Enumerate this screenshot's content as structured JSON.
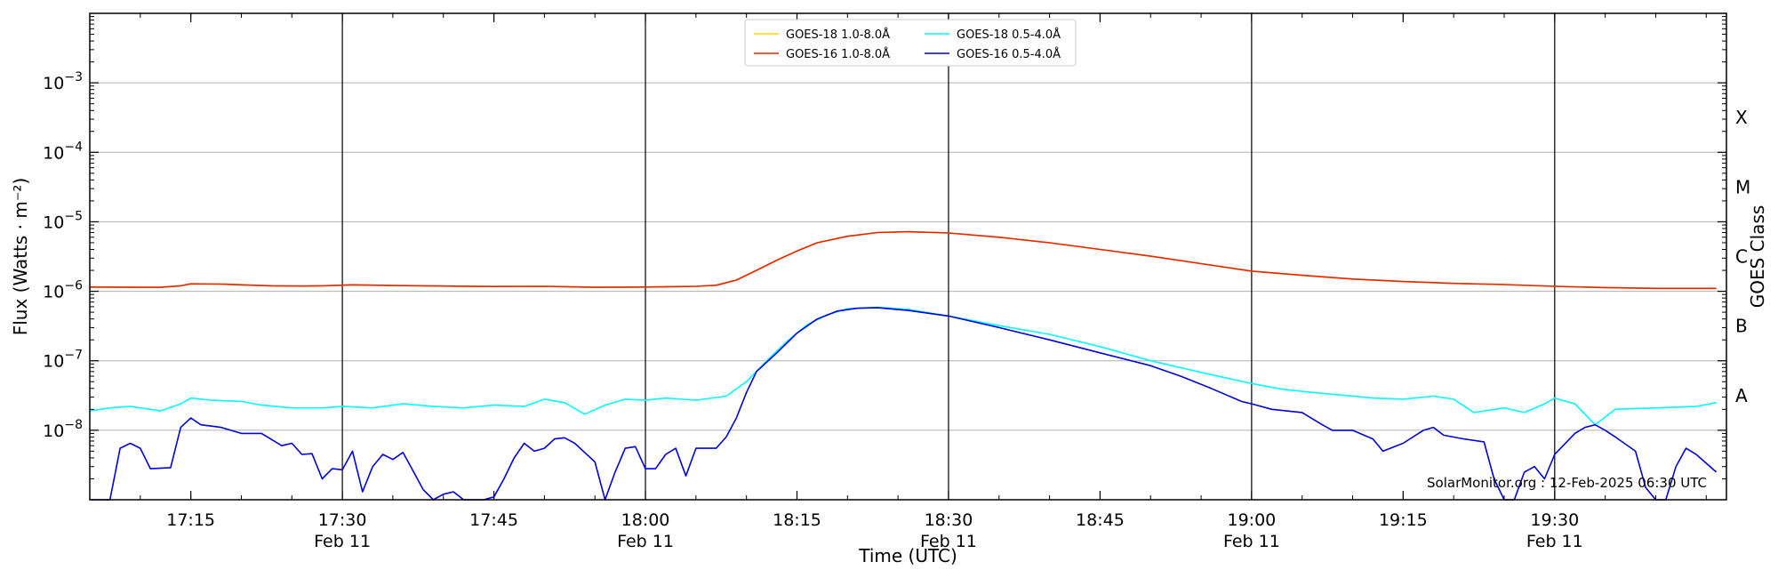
{
  "chart_data": {
    "type": "line",
    "title": "",
    "xlabel": "Time (UTC)",
    "ylabel": "Flux (Watts · m⁻²)",
    "ylabel_right": "GOES Class",
    "yscale": "log",
    "xlim": [
      "17:05",
      "19:47"
    ],
    "ylim": [
      1e-09,
      0.01
    ],
    "grid": "horizontal-decades",
    "legend_position": "top-center",
    "credit": "SolarMonitor.org : 12-Feb-2025 06:30 UTC",
    "x_ticks": [
      {
        "time": "17:15",
        "label": "17:15",
        "date": ""
      },
      {
        "time": "17:30",
        "label": "17:30",
        "date": "Feb 11",
        "major": true
      },
      {
        "time": "17:45",
        "label": "17:45",
        "date": ""
      },
      {
        "time": "18:00",
        "label": "18:00",
        "date": "Feb 11",
        "major": true
      },
      {
        "time": "18:15",
        "label": "18:15",
        "date": ""
      },
      {
        "time": "18:30",
        "label": "18:30",
        "date": "Feb 11",
        "major": true
      },
      {
        "time": "18:45",
        "label": "18:45",
        "date": ""
      },
      {
        "time": "19:00",
        "label": "19:00",
        "date": "Feb 11",
        "major": true
      },
      {
        "time": "19:15",
        "label": "19:15",
        "date": ""
      },
      {
        "time": "19:30",
        "label": "19:30",
        "date": "Feb 11",
        "major": true
      }
    ],
    "y_ticks": [
      {
        "value": 1e-08,
        "base": "10",
        "exp": "−8"
      },
      {
        "value": 1e-07,
        "base": "10",
        "exp": "−7"
      },
      {
        "value": 1e-06,
        "base": "10",
        "exp": "−6"
      },
      {
        "value": 1e-05,
        "base": "10",
        "exp": "−5"
      },
      {
        "value": 0.0001,
        "base": "10",
        "exp": "−4"
      },
      {
        "value": 0.001,
        "base": "10",
        "exp": "−3"
      }
    ],
    "goes_classes": [
      {
        "label": "A",
        "value": 3.16e-08
      },
      {
        "label": "B",
        "value": 3.16e-07
      },
      {
        "label": "C",
        "value": 3.16e-06
      },
      {
        "label": "M",
        "value": 3.16e-05
      },
      {
        "label": "X",
        "value": 0.000316
      }
    ],
    "series": [
      {
        "name": "GOES-18 1.0-8.0Å",
        "color": "#ffd700",
        "points": [
          [
            "17:05",
            1.15e-06
          ],
          [
            "17:10",
            1.14e-06
          ],
          [
            "17:12",
            1.14e-06
          ],
          [
            "17:14",
            1.2e-06
          ],
          [
            "17:15",
            1.28e-06
          ],
          [
            "17:18",
            1.27e-06
          ],
          [
            "17:20",
            1.24e-06
          ],
          [
            "17:23",
            1.2e-06
          ],
          [
            "17:26",
            1.19e-06
          ],
          [
            "17:28",
            1.2e-06
          ],
          [
            "17:31",
            1.24e-06
          ],
          [
            "17:35",
            1.21e-06
          ],
          [
            "17:40",
            1.19e-06
          ],
          [
            "17:45",
            1.17e-06
          ],
          [
            "17:50",
            1.18e-06
          ],
          [
            "17:55",
            1.14e-06
          ],
          [
            "18:00",
            1.15e-06
          ],
          [
            "18:05",
            1.18e-06
          ],
          [
            "18:07",
            1.22e-06
          ],
          [
            "18:09",
            1.45e-06
          ],
          [
            "18:11",
            2e-06
          ],
          [
            "18:13",
            2.8e-06
          ],
          [
            "18:15",
            3.8e-06
          ],
          [
            "18:17",
            5e-06
          ],
          [
            "18:20",
            6.2e-06
          ],
          [
            "18:23",
            7e-06
          ],
          [
            "18:26",
            7.2e-06
          ],
          [
            "18:30",
            6.9e-06
          ],
          [
            "18:35",
            6e-06
          ],
          [
            "18:40",
            5e-06
          ],
          [
            "18:45",
            4e-06
          ],
          [
            "18:50",
            3.2e-06
          ],
          [
            "18:55",
            2.5e-06
          ],
          [
            "19:00",
            1.95e-06
          ],
          [
            "19:05",
            1.7e-06
          ],
          [
            "19:10",
            1.5e-06
          ],
          [
            "19:15",
            1.38e-06
          ],
          [
            "19:20",
            1.3e-06
          ],
          [
            "19:25",
            1.25e-06
          ],
          [
            "19:30",
            1.18e-06
          ],
          [
            "19:35",
            1.13e-06
          ],
          [
            "19:40",
            1.1e-06
          ],
          [
            "19:46",
            1.1e-06
          ]
        ]
      },
      {
        "name": "GOES-16 1.0-8.0Å",
        "color": "#ee2200",
        "points": [
          [
            "17:05",
            1.15e-06
          ],
          [
            "17:10",
            1.14e-06
          ],
          [
            "17:12",
            1.14e-06
          ],
          [
            "17:14",
            1.2e-06
          ],
          [
            "17:15",
            1.28e-06
          ],
          [
            "17:18",
            1.27e-06
          ],
          [
            "17:20",
            1.24e-06
          ],
          [
            "17:23",
            1.2e-06
          ],
          [
            "17:26",
            1.19e-06
          ],
          [
            "17:28",
            1.2e-06
          ],
          [
            "17:31",
            1.24e-06
          ],
          [
            "17:35",
            1.21e-06
          ],
          [
            "17:40",
            1.19e-06
          ],
          [
            "17:45",
            1.17e-06
          ],
          [
            "17:50",
            1.18e-06
          ],
          [
            "17:55",
            1.14e-06
          ],
          [
            "18:00",
            1.15e-06
          ],
          [
            "18:05",
            1.18e-06
          ],
          [
            "18:07",
            1.22e-06
          ],
          [
            "18:09",
            1.45e-06
          ],
          [
            "18:11",
            2e-06
          ],
          [
            "18:13",
            2.8e-06
          ],
          [
            "18:15",
            3.8e-06
          ],
          [
            "18:17",
            5e-06
          ],
          [
            "18:20",
            6.2e-06
          ],
          [
            "18:23",
            7e-06
          ],
          [
            "18:26",
            7.2e-06
          ],
          [
            "18:30",
            6.9e-06
          ],
          [
            "18:35",
            6e-06
          ],
          [
            "18:40",
            5e-06
          ],
          [
            "18:45",
            4e-06
          ],
          [
            "18:50",
            3.2e-06
          ],
          [
            "18:55",
            2.5e-06
          ],
          [
            "19:00",
            1.95e-06
          ],
          [
            "19:05",
            1.7e-06
          ],
          [
            "19:10",
            1.5e-06
          ],
          [
            "19:15",
            1.38e-06
          ],
          [
            "19:20",
            1.3e-06
          ],
          [
            "19:25",
            1.25e-06
          ],
          [
            "19:30",
            1.18e-06
          ],
          [
            "19:35",
            1.13e-06
          ],
          [
            "19:40",
            1.1e-06
          ],
          [
            "19:46",
            1.1e-06
          ]
        ]
      },
      {
        "name": "GOES-18 0.5-4.0Å",
        "color": "#00ffff",
        "points": [
          [
            "17:05",
            1.9e-08
          ],
          [
            "17:07",
            2.1e-08
          ],
          [
            "17:09",
            2.2e-08
          ],
          [
            "17:12",
            1.9e-08
          ],
          [
            "17:14",
            2.4e-08
          ],
          [
            "17:15",
            2.9e-08
          ],
          [
            "17:17",
            2.7e-08
          ],
          [
            "17:20",
            2.6e-08
          ],
          [
            "17:22",
            2.3e-08
          ],
          [
            "17:25",
            2.1e-08
          ],
          [
            "17:28",
            2.1e-08
          ],
          [
            "17:30",
            2.2e-08
          ],
          [
            "17:33",
            2.1e-08
          ],
          [
            "17:36",
            2.4e-08
          ],
          [
            "17:39",
            2.2e-08
          ],
          [
            "17:42",
            2.1e-08
          ],
          [
            "17:45",
            2.3e-08
          ],
          [
            "17:48",
            2.2e-08
          ],
          [
            "17:50",
            2.8e-08
          ],
          [
            "17:52",
            2.5e-08
          ],
          [
            "17:54",
            1.7e-08
          ],
          [
            "17:56",
            2.3e-08
          ],
          [
            "17:58",
            2.8e-08
          ],
          [
            "18:00",
            2.7e-08
          ],
          [
            "18:02",
            2.9e-08
          ],
          [
            "18:05",
            2.7e-08
          ],
          [
            "18:08",
            3.1e-08
          ],
          [
            "18:10",
            5e-08
          ],
          [
            "18:12",
            1e-07
          ],
          [
            "18:14",
            1.9e-07
          ],
          [
            "18:16",
            3.3e-07
          ],
          [
            "18:18",
            4.6e-07
          ],
          [
            "18:20",
            5.6e-07
          ],
          [
            "18:23",
            5.9e-07
          ],
          [
            "18:26",
            5.5e-07
          ],
          [
            "18:30",
            4.4e-07
          ],
          [
            "18:35",
            3.2e-07
          ],
          [
            "18:40",
            2.4e-07
          ],
          [
            "18:45",
            1.6e-07
          ],
          [
            "18:50",
            1e-07
          ],
          [
            "18:55",
            6.8e-08
          ],
          [
            "19:00",
            4.7e-08
          ],
          [
            "19:03",
            3.9e-08
          ],
          [
            "19:06",
            3.5e-08
          ],
          [
            "19:09",
            3.2e-08
          ],
          [
            "19:12",
            2.9e-08
          ],
          [
            "19:15",
            2.8e-08
          ],
          [
            "19:18",
            3.1e-08
          ],
          [
            "19:20",
            2.8e-08
          ],
          [
            "19:22",
            1.8e-08
          ],
          [
            "19:25",
            2.1e-08
          ],
          [
            "19:27",
            1.8e-08
          ],
          [
            "19:29",
            2.4e-08
          ],
          [
            "19:30",
            2.9e-08
          ],
          [
            "19:32",
            2.4e-08
          ],
          [
            "19:34",
            1.2e-08
          ],
          [
            "19:36",
            2e-08
          ],
          [
            "19:40",
            2.1e-08
          ],
          [
            "19:44",
            2.2e-08
          ],
          [
            "19:46",
            2.5e-08
          ]
        ]
      },
      {
        "name": "GOES-16 0.5-4.0Å",
        "color": "#0000dd",
        "points": [
          [
            "17:05",
            1e-09
          ],
          [
            "17:06",
            1e-09
          ],
          [
            "17:07",
            1e-09
          ],
          [
            "17:08",
            5.5e-09
          ],
          [
            "17:09",
            6.5e-09
          ],
          [
            "17:10",
            5.5e-09
          ],
          [
            "17:11",
            2.8e-09
          ],
          [
            "17:13",
            2.9e-09
          ],
          [
            "17:14",
            1.1e-08
          ],
          [
            "17:15",
            1.5e-08
          ],
          [
            "17:16",
            1.2e-08
          ],
          [
            "17:18",
            1.1e-08
          ],
          [
            "17:20",
            9e-09
          ],
          [
            "17:22",
            9e-09
          ],
          [
            "17:24",
            6e-09
          ],
          [
            "17:25",
            6.5e-09
          ],
          [
            "17:26",
            4.5e-09
          ],
          [
            "17:27",
            4.6e-09
          ],
          [
            "17:28",
            2e-09
          ],
          [
            "17:29",
            2.8e-09
          ],
          [
            "17:30",
            2.7e-09
          ],
          [
            "17:31",
            5e-09
          ],
          [
            "17:32",
            1.3e-09
          ],
          [
            "17:33",
            3e-09
          ],
          [
            "17:34",
            4.5e-09
          ],
          [
            "17:35",
            3.8e-09
          ],
          [
            "17:36",
            4.8e-09
          ],
          [
            "17:37",
            2.6e-09
          ],
          [
            "17:38",
            1.4e-09
          ],
          [
            "17:39",
            1e-09
          ],
          [
            "17:40",
            1.2e-09
          ],
          [
            "17:41",
            1.3e-09
          ],
          [
            "17:42",
            1e-09
          ],
          [
            "17:44",
            1e-09
          ],
          [
            "17:45",
            1.1e-09
          ],
          [
            "17:46",
            2e-09
          ],
          [
            "17:47",
            4e-09
          ],
          [
            "17:48",
            6.5e-09
          ],
          [
            "17:49",
            5e-09
          ],
          [
            "17:50",
            5.5e-09
          ],
          [
            "17:51",
            7.5e-09
          ],
          [
            "17:52",
            7.8e-09
          ],
          [
            "17:53",
            6.5e-09
          ],
          [
            "17:55",
            3.5e-09
          ],
          [
            "17:56",
            1e-09
          ],
          [
            "17:57",
            2.5e-09
          ],
          [
            "17:58",
            5.5e-09
          ],
          [
            "17:59",
            5.8e-09
          ],
          [
            "18:00",
            2.8e-09
          ],
          [
            "18:01",
            2.8e-09
          ],
          [
            "18:02",
            4.5e-09
          ],
          [
            "18:03",
            5.5e-09
          ],
          [
            "18:04",
            2.2e-09
          ],
          [
            "18:05",
            5.5e-09
          ],
          [
            "18:07",
            5.5e-09
          ],
          [
            "18:08",
            8e-09
          ],
          [
            "18:09",
            1.5e-08
          ],
          [
            "18:10",
            3.5e-08
          ],
          [
            "18:11",
            7e-08
          ],
          [
            "18:13",
            1.3e-07
          ],
          [
            "18:15",
            2.5e-07
          ],
          [
            "18:17",
            4e-07
          ],
          [
            "18:19",
            5.2e-07
          ],
          [
            "18:21",
            5.7e-07
          ],
          [
            "18:23",
            5.8e-07
          ],
          [
            "18:26",
            5.3e-07
          ],
          [
            "18:30",
            4.4e-07
          ],
          [
            "18:35",
            3e-07
          ],
          [
            "18:40",
            2e-07
          ],
          [
            "18:45",
            1.3e-07
          ],
          [
            "18:50",
            8.5e-08
          ],
          [
            "18:53",
            6e-08
          ],
          [
            "18:56",
            4e-08
          ],
          [
            "18:59",
            2.6e-08
          ],
          [
            "19:00",
            2.4e-08
          ],
          [
            "19:02",
            2e-08
          ],
          [
            "19:05",
            1.8e-08
          ],
          [
            "19:07",
            1.2e-08
          ],
          [
            "19:08",
            1e-08
          ],
          [
            "19:10",
            1e-08
          ],
          [
            "19:12",
            7.5e-09
          ],
          [
            "19:13",
            5e-09
          ],
          [
            "19:15",
            6.5e-09
          ],
          [
            "19:17",
            1e-08
          ],
          [
            "19:18",
            1.1e-08
          ],
          [
            "19:19",
            8.5e-09
          ],
          [
            "19:21",
            7.5e-09
          ],
          [
            "19:23",
            6.8e-09
          ],
          [
            "19:24",
            2e-09
          ],
          [
            "19:25",
            1e-09
          ],
          [
            "19:26",
            1e-09
          ],
          [
            "19:27",
            2.5e-09
          ],
          [
            "19:28",
            3e-09
          ],
          [
            "19:29",
            2e-09
          ],
          [
            "19:30",
            4.5e-09
          ],
          [
            "19:32",
            9e-09
          ],
          [
            "19:33",
            1.1e-08
          ],
          [
            "19:34",
            1.2e-08
          ],
          [
            "19:35",
            1e-08
          ],
          [
            "19:36",
            8e-09
          ],
          [
            "19:38",
            5e-09
          ],
          [
            "19:39",
            1.5e-09
          ],
          [
            "19:40",
            1e-09
          ],
          [
            "19:41",
            1e-09
          ],
          [
            "19:42",
            3e-09
          ],
          [
            "19:43",
            5.5e-09
          ],
          [
            "19:44",
            4.5e-09
          ],
          [
            "19:46",
            2.5e-09
          ]
        ]
      }
    ]
  }
}
